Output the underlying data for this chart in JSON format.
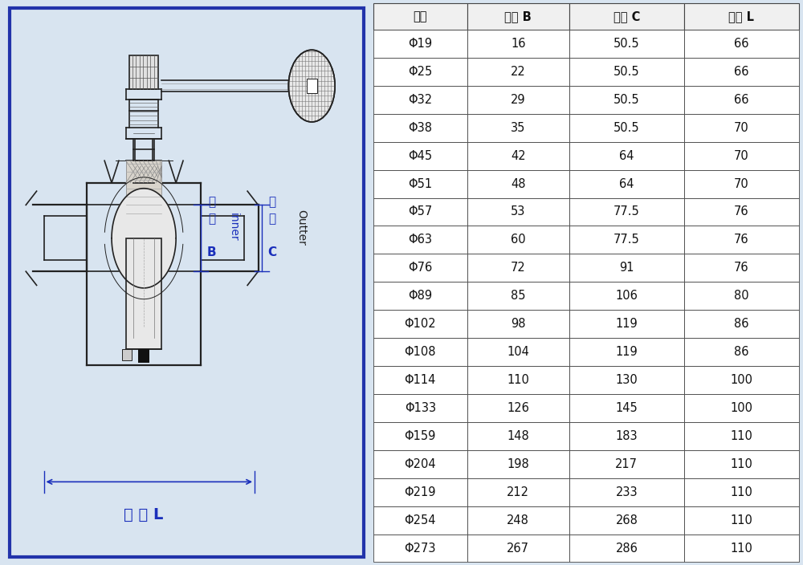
{
  "table_headers": [
    "规格",
    "内径 B",
    "卡盘 C",
    "长度 L"
  ],
  "table_data": [
    [
      "Φ19",
      "16",
      "50.5",
      "66"
    ],
    [
      "Φ25",
      "22",
      "50.5",
      "66"
    ],
    [
      "Φ32",
      "29",
      "50.5",
      "66"
    ],
    [
      "Φ38",
      "35",
      "50.5",
      "70"
    ],
    [
      "Φ45",
      "42",
      "64",
      "70"
    ],
    [
      "Φ51",
      "48",
      "64",
      "70"
    ],
    [
      "Φ57",
      "53",
      "77.5",
      "76"
    ],
    [
      "Φ63",
      "60",
      "77.5",
      "76"
    ],
    [
      "Φ76",
      "72",
      "91",
      "76"
    ],
    [
      "Φ89",
      "85",
      "106",
      "80"
    ],
    [
      "Φ102",
      "98",
      "119",
      "86"
    ],
    [
      "Φ108",
      "104",
      "119",
      "86"
    ],
    [
      "Φ114",
      "110",
      "130",
      "100"
    ],
    [
      "Φ133",
      "126",
      "145",
      "100"
    ],
    [
      "Φ159",
      "148",
      "183",
      "110"
    ],
    [
      "Φ204",
      "198",
      "217",
      "110"
    ],
    [
      "Φ219",
      "212",
      "233",
      "110"
    ],
    [
      "Φ254",
      "248",
      "268",
      "110"
    ],
    [
      "Φ273",
      "267",
      "286",
      "110"
    ]
  ],
  "label_inner_zh": "内径",
  "label_inner_b": "B",
  "label_outer_zh": "卡盘",
  "label_outer_c": "C",
  "label_length": "长 度 L",
  "text_inner": "inner",
  "text_outer": "Outter",
  "bg_color": "#ffffff",
  "border_color": "#2233aa",
  "table_line_color": "#444444",
  "label_color": "#1a2fbb",
  "diagram_bg": "#ffffff",
  "outer_bg": "#d8e4f0"
}
